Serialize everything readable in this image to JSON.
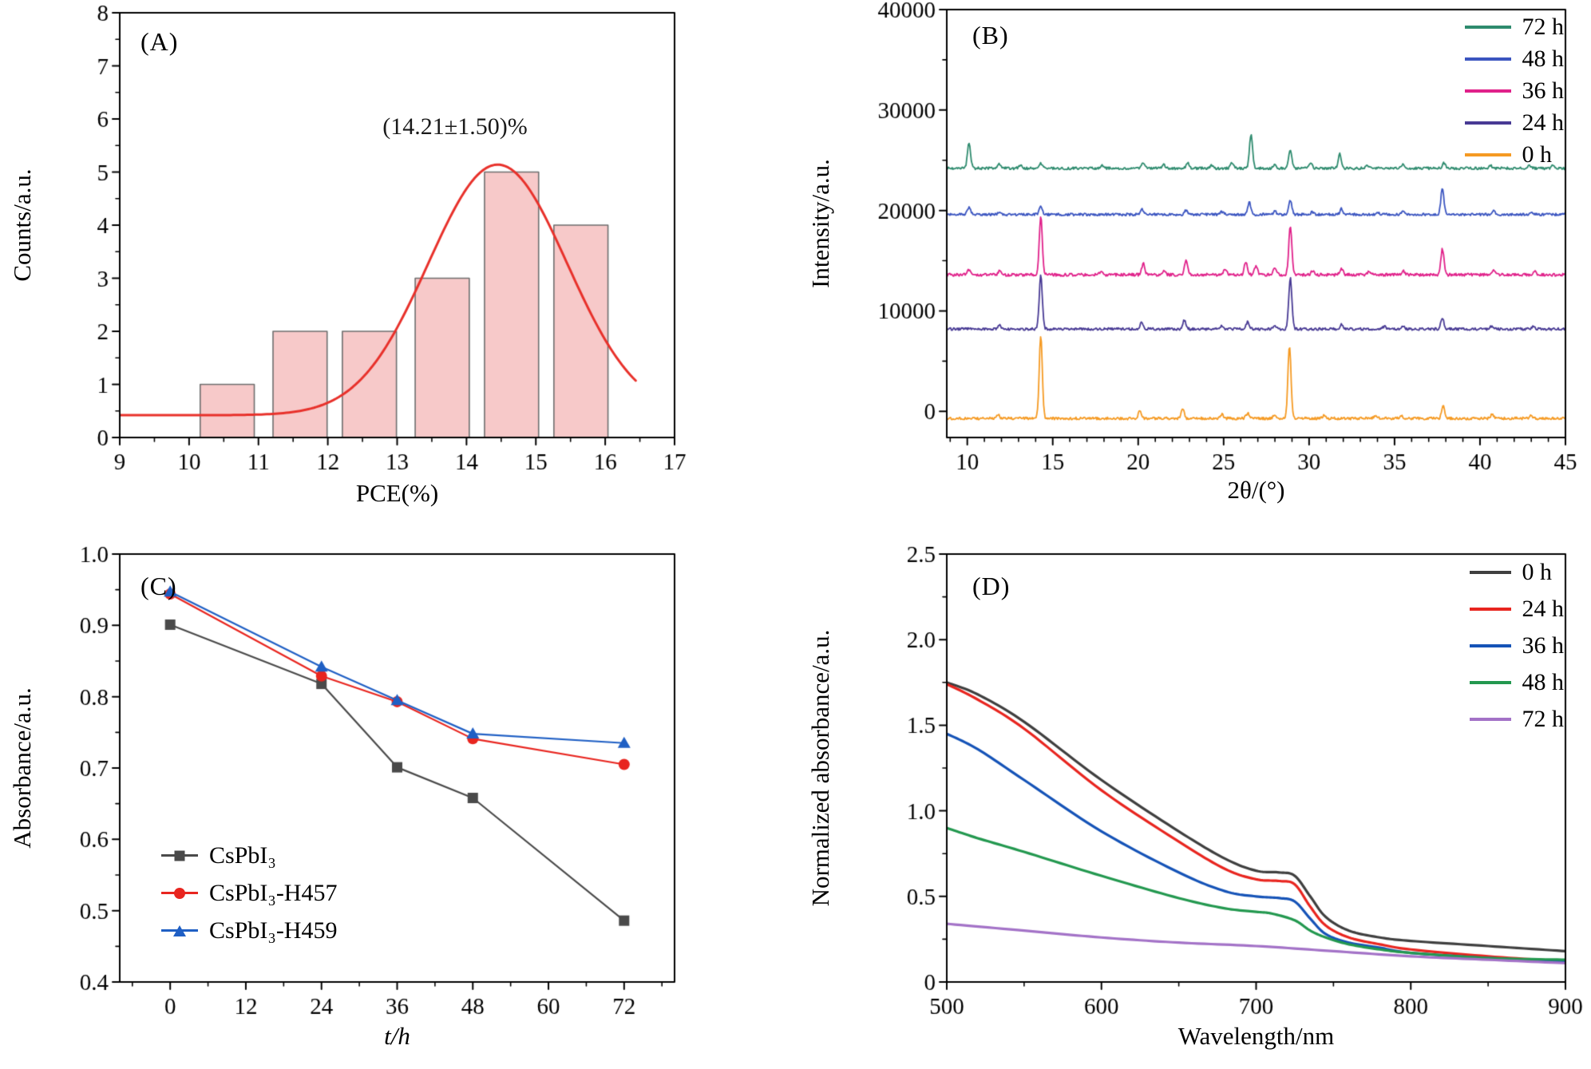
{
  "page": {
    "background": "#ffffff"
  },
  "chart_data": [
    {
      "id": "A",
      "panel_label": "(A)",
      "type": "bar",
      "xlabel": "PCE(%)",
      "ylabel": "Counts/a.u.",
      "xlim": [
        9,
        17
      ],
      "ylim": [
        0,
        8
      ],
      "xticks": [
        9,
        10,
        11,
        12,
        13,
        14,
        15,
        16,
        17
      ],
      "yticks": [
        0,
        1,
        2,
        3,
        4,
        5,
        6,
        7,
        8
      ],
      "xminor": 0.5,
      "yminor": 0.5,
      "bar_centers": [
        10.55,
        11.6,
        12.6,
        13.65,
        14.65,
        15.65
      ],
      "bar_values": [
        1,
        2,
        2,
        3,
        5,
        4
      ],
      "bar_width": 0.78,
      "bar_fill": "#f7c9c9",
      "bar_edge": "#6e6e6e",
      "fit_curve": {
        "baseline": 0.42,
        "amplitude": 4.72,
        "mean": 14.45,
        "sigma": 1.0,
        "color": "#e8312b",
        "x_range": [
          9,
          16.45
        ]
      },
      "annotation": {
        "text": "(14.21±1.50)%",
        "x": 13.8,
        "y": 5.75
      }
    },
    {
      "id": "B",
      "panel_label": "(B)",
      "type": "line",
      "xlabel": "2θ/(°)",
      "ylabel": "Intensity/a.u.",
      "xlim": [
        8.8,
        45
      ],
      "ylim": [
        -2600,
        40000
      ],
      "xticks": [
        10,
        15,
        20,
        25,
        30,
        35,
        40,
        45
      ],
      "yticks": [
        0,
        10000,
        20000,
        30000,
        40000
      ],
      "ytick_labels": [
        "0",
        "10000",
        "20000",
        "30000",
        "40000"
      ],
      "xminor": 1,
      "yminor": 5000,
      "legend_reverse": true,
      "legend_position": "top-right",
      "series": [
        {
          "name": "0 h",
          "color": "#f59a23",
          "offset": -700,
          "noise": 260,
          "peaks": [
            [
              11.8,
              350
            ],
            [
              14.3,
              8300
            ],
            [
              20.1,
              750
            ],
            [
              22.6,
              950
            ],
            [
              24.9,
              420
            ],
            [
              26.4,
              520
            ],
            [
              28.0,
              420
            ],
            [
              28.85,
              7300
            ],
            [
              30.9,
              320
            ],
            [
              33.9,
              260
            ],
            [
              35.4,
              300
            ],
            [
              37.85,
              1250
            ],
            [
              40.7,
              380
            ],
            [
              43.0,
              300
            ]
          ]
        },
        {
          "name": "24 h",
          "color": "#483a94",
          "offset": 8200,
          "noise": 250,
          "peaks": [
            [
              11.9,
              330
            ],
            [
              14.3,
              5300
            ],
            [
              20.2,
              680
            ],
            [
              22.7,
              900
            ],
            [
              24.9,
              360
            ],
            [
              26.4,
              700
            ],
            [
              28.0,
              380
            ],
            [
              28.9,
              5100
            ],
            [
              31.9,
              480
            ],
            [
              34.4,
              260
            ],
            [
              35.5,
              300
            ],
            [
              37.8,
              1050
            ],
            [
              40.7,
              320
            ],
            [
              43.1,
              260
            ]
          ]
        },
        {
          "name": "36 h",
          "color": "#e0218a",
          "offset": 13600,
          "noise": 280,
          "peaks": [
            [
              10.1,
              520
            ],
            [
              11.9,
              460
            ],
            [
              14.3,
              5800
            ],
            [
              17.8,
              260
            ],
            [
              20.3,
              1100
            ],
            [
              21.5,
              380
            ],
            [
              22.8,
              1400
            ],
            [
              25.1,
              620
            ],
            [
              26.3,
              1300
            ],
            [
              26.9,
              900
            ],
            [
              28.0,
              700
            ],
            [
              28.9,
              4800
            ],
            [
              30.2,
              420
            ],
            [
              31.9,
              650
            ],
            [
              33.5,
              320
            ],
            [
              35.5,
              400
            ],
            [
              37.8,
              2600
            ],
            [
              40.8,
              520
            ],
            [
              43.2,
              420
            ]
          ]
        },
        {
          "name": "48 h",
          "color": "#3b55c0",
          "offset": 19600,
          "noise": 250,
          "peaks": [
            [
              10.1,
              700
            ],
            [
              11.9,
              300
            ],
            [
              14.3,
              800
            ],
            [
              20.2,
              520
            ],
            [
              22.8,
              420
            ],
            [
              24.9,
              260
            ],
            [
              26.5,
              1250
            ],
            [
              28.0,
              320
            ],
            [
              28.9,
              1400
            ],
            [
              30.2,
              260
            ],
            [
              31.9,
              560
            ],
            [
              34.0,
              220
            ],
            [
              35.5,
              260
            ],
            [
              37.8,
              2600
            ],
            [
              40.8,
              360
            ],
            [
              43.0,
              260
            ]
          ]
        },
        {
          "name": "72 h",
          "color": "#2e8b6e",
          "offset": 24200,
          "noise": 250,
          "peaks": [
            [
              10.1,
              2600
            ],
            [
              11.9,
              420
            ],
            [
              13.1,
              300
            ],
            [
              14.3,
              520
            ],
            [
              17.9,
              260
            ],
            [
              20.3,
              620
            ],
            [
              21.5,
              320
            ],
            [
              22.9,
              520
            ],
            [
              24.3,
              300
            ],
            [
              25.5,
              520
            ],
            [
              26.6,
              3300
            ],
            [
              28.0,
              360
            ],
            [
              28.9,
              1800
            ],
            [
              30.1,
              420
            ],
            [
              31.8,
              1400
            ],
            [
              33.4,
              320
            ],
            [
              35.5,
              360
            ],
            [
              37.9,
              520
            ],
            [
              40.6,
              320
            ],
            [
              42.9,
              260
            ],
            [
              44.3,
              320
            ]
          ]
        }
      ]
    },
    {
      "id": "C",
      "panel_label": "(C)",
      "type": "line",
      "xlabel": "t/h",
      "ylabel": "Absorbance/a.u.",
      "xlim": [
        -8,
        80
      ],
      "ylim": [
        0.4,
        1.0
      ],
      "xticks": [
        0,
        12,
        24,
        36,
        48,
        60,
        72
      ],
      "yticks": [
        0.4,
        0.5,
        0.6,
        0.7,
        0.8,
        0.9,
        1.0
      ],
      "ytick_labels": [
        "0.4",
        "0.5",
        "0.6",
        "0.7",
        "0.8",
        "0.9",
        "1.0"
      ],
      "xminor": 6,
      "yminor": 0.05,
      "x": [
        0,
        24,
        36,
        48,
        72
      ],
      "legend_position": "bottom-left",
      "series": [
        {
          "name": "CsPbI₃",
          "color": "#4a4a4a",
          "marker": "square",
          "values": [
            0.901,
            0.818,
            0.701,
            0.658,
            0.486
          ]
        },
        {
          "name": "CsPbI₃-H457",
          "color": "#e8251f",
          "marker": "circle",
          "values": [
            0.944,
            0.829,
            0.793,
            0.741,
            0.705
          ]
        },
        {
          "name": "CsPbI₃-H459",
          "color": "#1f5fc4",
          "marker": "triangle",
          "values": [
            0.947,
            0.842,
            0.795,
            0.748,
            0.735
          ]
        }
      ]
    },
    {
      "id": "D",
      "panel_label": "(D)",
      "type": "line",
      "xlabel": "Wavelength/nm",
      "ylabel": "Normalized absorbance/a.u.",
      "xlim": [
        500,
        900
      ],
      "ylim": [
        0,
        2.5
      ],
      "xticks": [
        500,
        600,
        700,
        800,
        900
      ],
      "yticks": [
        0,
        0.5,
        1.0,
        1.5,
        2.0,
        2.5
      ],
      "ytick_labels": [
        "0",
        "0.5",
        "1.0",
        "1.5",
        "2.0",
        "2.5"
      ],
      "xminor": 50,
      "yminor": 0.25,
      "legend_position": "top-right",
      "series": [
        {
          "name": "0 h",
          "color": "#3f3f3f",
          "points": [
            [
              500,
              1.75
            ],
            [
              520,
              1.68
            ],
            [
              550,
              1.52
            ],
            [
              600,
              1.18
            ],
            [
              650,
              0.88
            ],
            [
              680,
              0.72
            ],
            [
              700,
              0.65
            ],
            [
              715,
              0.64
            ],
            [
              725,
              0.62
            ],
            [
              735,
              0.5
            ],
            [
              745,
              0.38
            ],
            [
              760,
              0.3
            ],
            [
              780,
              0.26
            ],
            [
              800,
              0.24
            ],
            [
              850,
              0.21
            ],
            [
              900,
              0.18
            ]
          ]
        },
        {
          "name": "24 h",
          "color": "#e8251f",
          "points": [
            [
              500,
              1.74
            ],
            [
              520,
              1.65
            ],
            [
              550,
              1.48
            ],
            [
              600,
              1.12
            ],
            [
              650,
              0.82
            ],
            [
              680,
              0.66
            ],
            [
              700,
              0.6
            ],
            [
              715,
              0.59
            ],
            [
              725,
              0.57
            ],
            [
              735,
              0.44
            ],
            [
              745,
              0.33
            ],
            [
              760,
              0.26
            ],
            [
              780,
              0.22
            ],
            [
              800,
              0.19
            ],
            [
              850,
              0.15
            ],
            [
              900,
              0.12
            ]
          ]
        },
        {
          "name": "36 h",
          "color": "#1553b7",
          "points": [
            [
              500,
              1.45
            ],
            [
              520,
              1.36
            ],
            [
              550,
              1.18
            ],
            [
              600,
              0.88
            ],
            [
              650,
              0.64
            ],
            [
              680,
              0.53
            ],
            [
              700,
              0.5
            ],
            [
              715,
              0.49
            ],
            [
              725,
              0.47
            ],
            [
              735,
              0.37
            ],
            [
              745,
              0.28
            ],
            [
              760,
              0.23
            ],
            [
              780,
              0.2
            ],
            [
              800,
              0.17
            ],
            [
              850,
              0.14
            ],
            [
              900,
              0.12
            ]
          ]
        },
        {
          "name": "48 h",
          "color": "#23984f",
          "points": [
            [
              500,
              0.9
            ],
            [
              520,
              0.84
            ],
            [
              550,
              0.76
            ],
            [
              600,
              0.62
            ],
            [
              650,
              0.49
            ],
            [
              680,
              0.43
            ],
            [
              700,
              0.41
            ],
            [
              710,
              0.4
            ],
            [
              725,
              0.36
            ],
            [
              735,
              0.3
            ],
            [
              745,
              0.26
            ],
            [
              760,
              0.22
            ],
            [
              780,
              0.19
            ],
            [
              800,
              0.17
            ],
            [
              850,
              0.14
            ],
            [
              900,
              0.13
            ]
          ]
        },
        {
          "name": "72 h",
          "color": "#a372c7",
          "points": [
            [
              500,
              0.34
            ],
            [
              550,
              0.3
            ],
            [
              600,
              0.26
            ],
            [
              650,
              0.23
            ],
            [
              700,
              0.21
            ],
            [
              750,
              0.18
            ],
            [
              800,
              0.15
            ],
            [
              850,
              0.13
            ],
            [
              900,
              0.11
            ]
          ]
        }
      ]
    }
  ]
}
